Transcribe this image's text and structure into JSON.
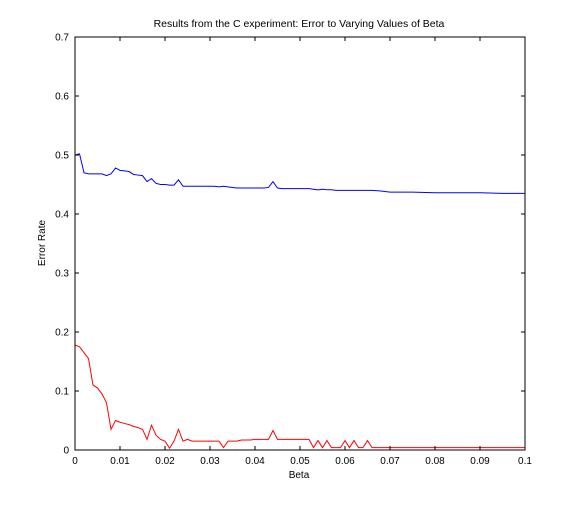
{
  "chart_data": {
    "type": "line",
    "title": "Results from the C experiment: Error to Varying Values of Beta",
    "xlabel": "Beta",
    "ylabel": "Error Rate",
    "xlim": [
      0,
      0.1
    ],
    "ylim": [
      0,
      0.7
    ],
    "xticks": [
      "0",
      "0.01",
      "0.02",
      "0.03",
      "0.04",
      "0.05",
      "0.06",
      "0.07",
      "0.08",
      "0.09",
      "0.1"
    ],
    "yticks": [
      "0",
      "0.1",
      "0.2",
      "0.3",
      "0.4",
      "0.5",
      "0.6",
      "0.7"
    ],
    "grid": false,
    "series": [
      {
        "color": "#0000ff",
        "x": [
          0.0,
          0.001,
          0.002,
          0.003,
          0.004,
          0.005,
          0.006,
          0.007,
          0.008,
          0.009,
          0.01,
          0.011,
          0.012,
          0.013,
          0.014,
          0.015,
          0.016,
          0.017,
          0.018,
          0.019,
          0.02,
          0.021,
          0.022,
          0.023,
          0.024,
          0.025,
          0.026,
          0.027,
          0.028,
          0.029,
          0.03,
          0.031,
          0.032,
          0.033,
          0.034,
          0.035,
          0.036,
          0.037,
          0.038,
          0.039,
          0.04,
          0.041,
          0.042,
          0.043,
          0.044,
          0.045,
          0.046,
          0.047,
          0.048,
          0.049,
          0.05,
          0.051,
          0.052,
          0.053,
          0.054,
          0.055,
          0.056,
          0.057,
          0.058,
          0.059,
          0.06,
          0.062,
          0.064,
          0.066,
          0.068,
          0.07,
          0.075,
          0.08,
          0.085,
          0.09,
          0.095,
          0.1
        ],
        "y": [
          0.5,
          0.502,
          0.47,
          0.468,
          0.468,
          0.468,
          0.468,
          0.465,
          0.468,
          0.478,
          0.474,
          0.473,
          0.472,
          0.467,
          0.466,
          0.465,
          0.455,
          0.46,
          0.452,
          0.45,
          0.45,
          0.449,
          0.449,
          0.458,
          0.447,
          0.447,
          0.447,
          0.447,
          0.447,
          0.447,
          0.447,
          0.447,
          0.446,
          0.447,
          0.446,
          0.445,
          0.444,
          0.444,
          0.444,
          0.444,
          0.444,
          0.444,
          0.444,
          0.445,
          0.455,
          0.444,
          0.443,
          0.443,
          0.443,
          0.443,
          0.443,
          0.443,
          0.443,
          0.442,
          0.441,
          0.442,
          0.441,
          0.441,
          0.44,
          0.44,
          0.44,
          0.44,
          0.44,
          0.44,
          0.439,
          0.437,
          0.437,
          0.436,
          0.436,
          0.436,
          0.435,
          0.435
        ]
      },
      {
        "color": "#ff0000",
        "x": [
          0.0,
          0.001,
          0.002,
          0.003,
          0.004,
          0.005,
          0.006,
          0.007,
          0.008,
          0.009,
          0.01,
          0.011,
          0.012,
          0.013,
          0.014,
          0.015,
          0.016,
          0.017,
          0.018,
          0.019,
          0.02,
          0.021,
          0.022,
          0.023,
          0.024,
          0.025,
          0.026,
          0.027,
          0.028,
          0.029,
          0.03,
          0.031,
          0.032,
          0.033,
          0.034,
          0.035,
          0.036,
          0.037,
          0.038,
          0.039,
          0.04,
          0.041,
          0.042,
          0.043,
          0.044,
          0.045,
          0.046,
          0.047,
          0.048,
          0.049,
          0.05,
          0.051,
          0.052,
          0.053,
          0.054,
          0.055,
          0.056,
          0.057,
          0.058,
          0.059,
          0.06,
          0.061,
          0.062,
          0.063,
          0.064,
          0.065,
          0.066,
          0.068,
          0.07,
          0.075,
          0.08,
          0.09,
          0.1
        ],
        "y": [
          0.178,
          0.175,
          0.165,
          0.155,
          0.11,
          0.105,
          0.095,
          0.08,
          0.035,
          0.05,
          0.047,
          0.045,
          0.043,
          0.04,
          0.038,
          0.035,
          0.018,
          0.042,
          0.025,
          0.018,
          0.015,
          0.003,
          0.015,
          0.035,
          0.015,
          0.018,
          0.015,
          0.015,
          0.015,
          0.015,
          0.015,
          0.015,
          0.015,
          0.004,
          0.015,
          0.015,
          0.015,
          0.017,
          0.017,
          0.017,
          0.018,
          0.018,
          0.018,
          0.018,
          0.033,
          0.018,
          0.018,
          0.018,
          0.018,
          0.018,
          0.018,
          0.018,
          0.018,
          0.004,
          0.016,
          0.004,
          0.016,
          0.004,
          0.004,
          0.004,
          0.016,
          0.004,
          0.016,
          0.004,
          0.004,
          0.016,
          0.004,
          0.004,
          0.004,
          0.004,
          0.004,
          0.004,
          0.004
        ]
      }
    ]
  }
}
